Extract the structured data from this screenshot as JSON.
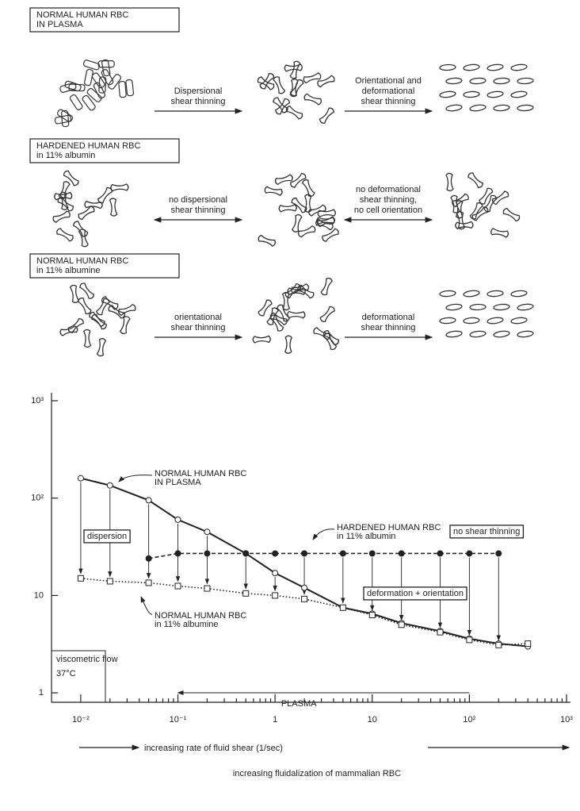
{
  "diagram": {
    "rows": [
      {
        "label": [
          "NORMAL HUMAN RBC",
          "IN PLASMA"
        ],
        "steps": [
          [
            "Dispersional",
            "shear thinning"
          ],
          [
            "Orientational and",
            "deformational",
            "shear thinning"
          ]
        ]
      },
      {
        "label": [
          "HARDENED HUMAN RBC",
          "in 11% albumin"
        ],
        "steps": [
          [
            "no dispersional",
            "shear thinning"
          ],
          [
            "no deformational",
            "shear thinning,",
            "no cell orientation"
          ]
        ]
      },
      {
        "label": [
          "NORMAL HUMAN RBC",
          "in 11% albumine"
        ],
        "steps": [
          [
            "orientational",
            "shear thinning"
          ],
          [
            "deformational",
            "shear thinning"
          ]
        ]
      }
    ]
  },
  "chart_data": {
    "type": "line",
    "log_x": true,
    "log_y": true,
    "x": [
      0.01,
      0.02,
      0.05,
      0.1,
      0.2,
      0.5,
      1,
      2,
      5,
      10,
      20,
      50,
      100,
      200,
      400
    ],
    "series": [
      {
        "name": "NORMAL HUMAN RBC",
        "name_line2": "IN PLASMA",
        "color": "#222",
        "style": "solid",
        "marker": "open-circle",
        "values": [
          160,
          135,
          95,
          60,
          45,
          27,
          17,
          12,
          7.5,
          6.5,
          5.2,
          4.3,
          3.6,
          3.2,
          3.0
        ]
      },
      {
        "name": "HARDENED HUMAN RBC",
        "name_line2": "in 11% albumin",
        "color": "#222",
        "style": "dashed",
        "marker": "filled-circle",
        "values": [
          null,
          null,
          24,
          27,
          27,
          27,
          27,
          27,
          27,
          27,
          27,
          27,
          27,
          27,
          null
        ]
      },
      {
        "name": "NORMAL HUMAN RBC",
        "name_line2": "in 11% albumine",
        "color": "#222",
        "style": "dotted",
        "marker": "open-square",
        "values": [
          15,
          14,
          13.5,
          12.5,
          11.8,
          10.5,
          10,
          9.2,
          7.5,
          6.3,
          5,
          4.2,
          3.5,
          3.1,
          3.2
        ]
      }
    ],
    "xlim": [
      0.005,
      1000
    ],
    "ylim": [
      0.8,
      1000
    ],
    "xticks": [
      {
        "value": 0.01,
        "label": "10⁻²"
      },
      {
        "value": 0.1,
        "label": "10⁻¹"
      },
      1,
      10,
      {
        "value": 100,
        "label": "10²"
      },
      {
        "value": 1000,
        "label": "10³"
      }
    ],
    "yticks": [
      1,
      10,
      {
        "value": 100,
        "label": "10²"
      },
      {
        "value": 1000,
        "label": "10³"
      }
    ],
    "annotations": [
      "dispersion",
      "no shear thinning",
      "deformation + orientation",
      "viscometric flow",
      "37°C"
    ],
    "plasma_label": "PLASMA",
    "plasma_range": [
      0.1,
      100
    ],
    "xlabel": "increasing rate of fluid shear (1/sec)",
    "xlabel2": "increasing fluidalization of mammalian RBC"
  }
}
